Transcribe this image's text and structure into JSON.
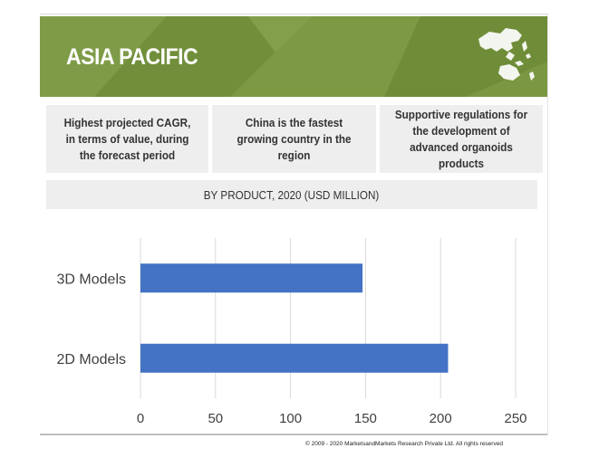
{
  "banner": {
    "title": "ASIA PACIFIC",
    "background_color": "#77963f",
    "map_icon": "asia-pacific-map-icon"
  },
  "highlights": [
    "Highest projected CAGR, in terms of value, during the forecast period",
    "China is  the fastest growing country in the region",
    "Supportive regulations for the development of advanced organoids products"
  ],
  "chart_data": {
    "type": "bar",
    "orientation": "horizontal",
    "title": "BY PRODUCT, 2020 (USD MILLION)",
    "categories": [
      "3D Models",
      "2D Models"
    ],
    "values": [
      148,
      205
    ],
    "xlim": [
      0,
      250
    ],
    "xticks": [
      "0",
      "50",
      "100",
      "150",
      "200",
      "250"
    ],
    "bar_color": "#4472c4",
    "grid": "vertical"
  },
  "footer": {
    "copyright": "© 2009 - 2020 MarketsandMarkets Research Private Ltd. All rights reserved"
  }
}
